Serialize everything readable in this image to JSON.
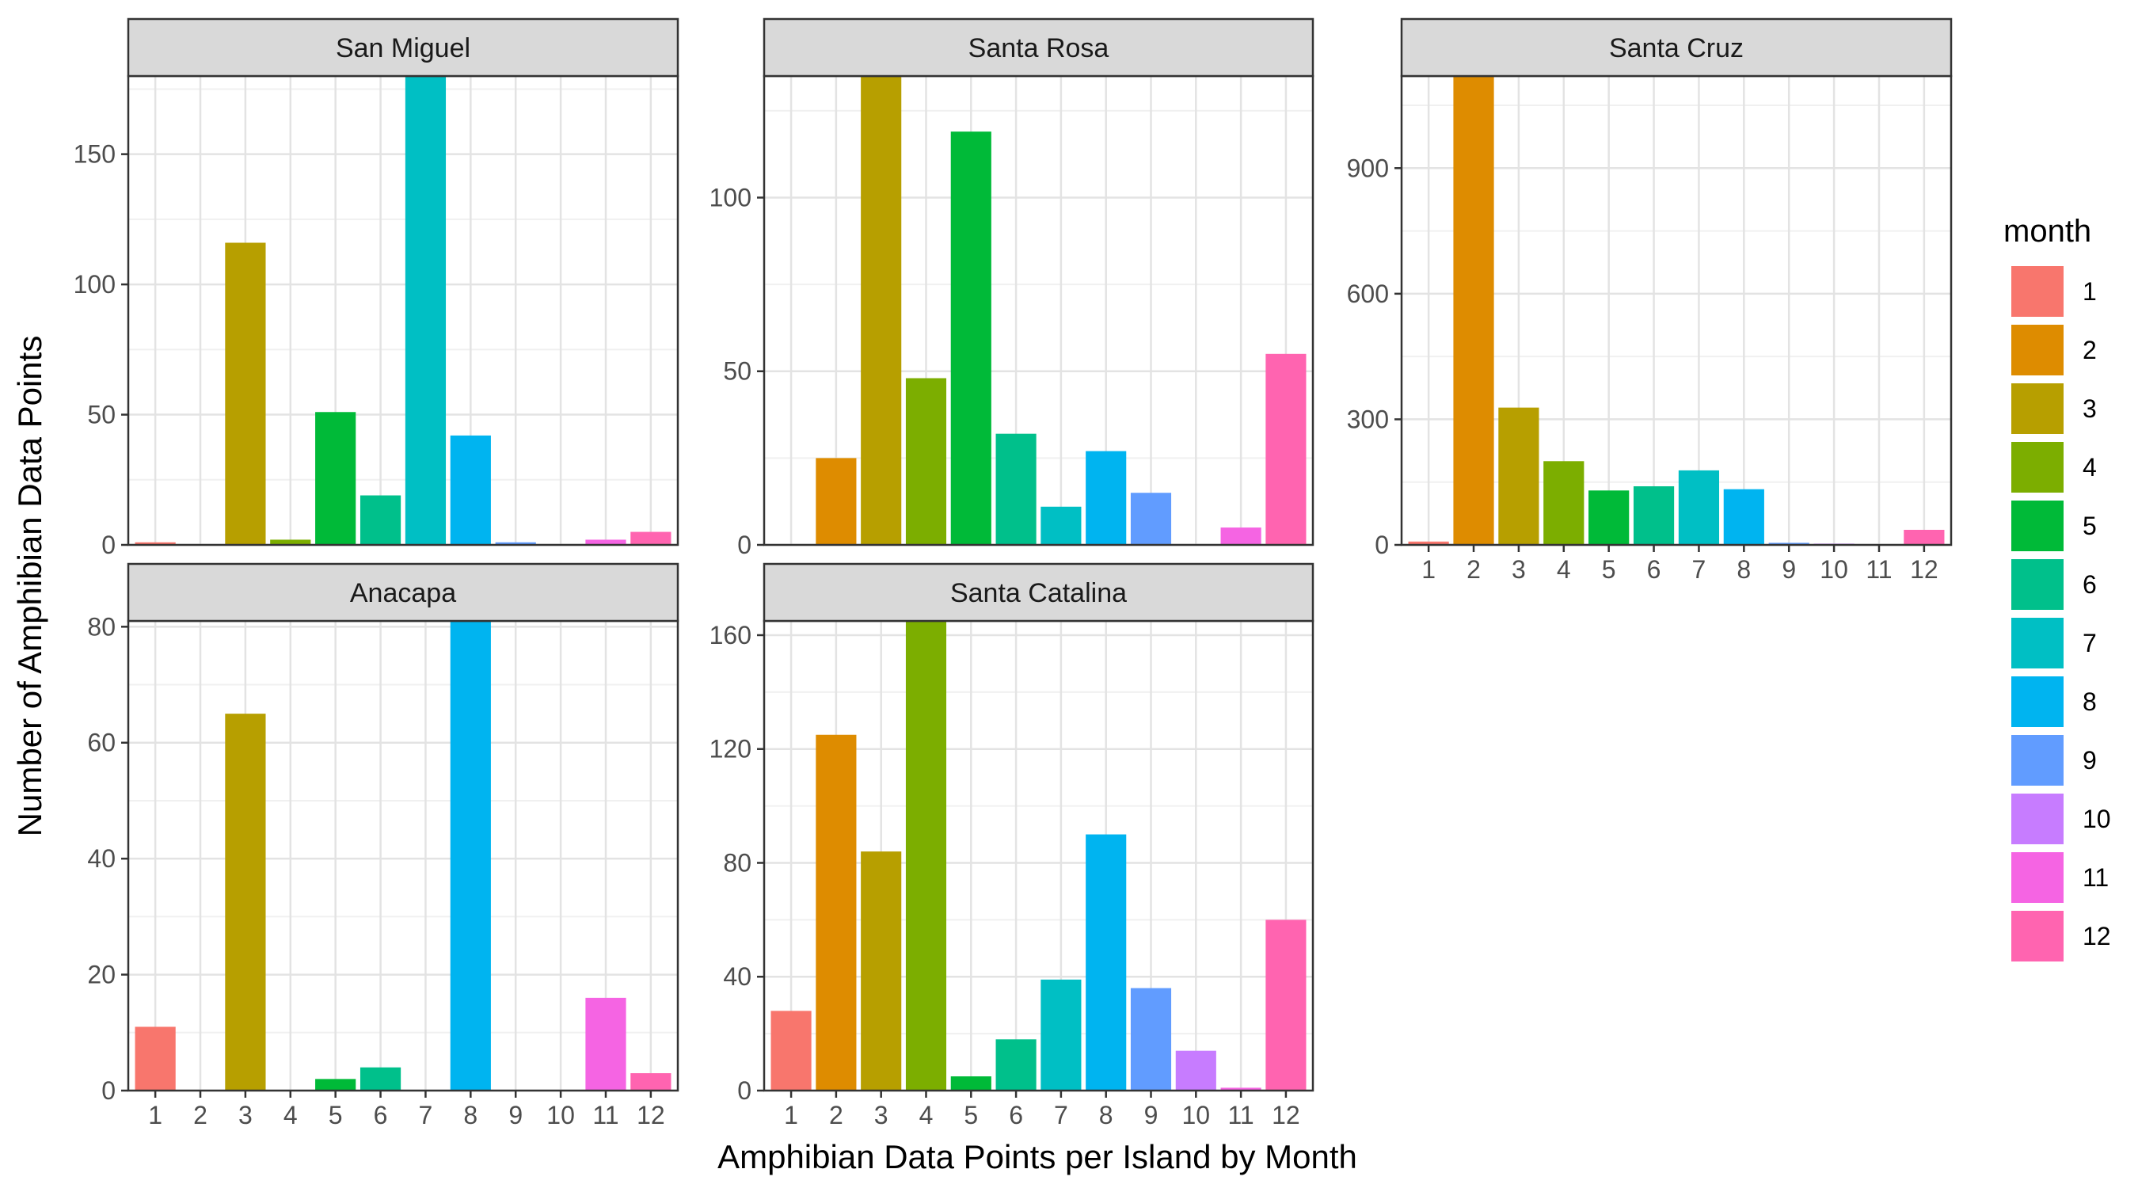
{
  "chart_data": {
    "type": "bar",
    "title": "",
    "xlabel": "Amphibian Data Points per Island by Month",
    "ylabel": "Number of Amphibian Data Points",
    "categories": [
      "1",
      "2",
      "3",
      "4",
      "5",
      "6",
      "7",
      "8",
      "9",
      "10",
      "11",
      "12"
    ],
    "grid": true,
    "legend": {
      "title": "month",
      "position": "right",
      "entries": [
        {
          "label": "1",
          "color": "#F8766D"
        },
        {
          "label": "2",
          "color": "#DE8C00"
        },
        {
          "label": "3",
          "color": "#B79F00"
        },
        {
          "label": "4",
          "color": "#7CAE00"
        },
        {
          "label": "5",
          "color": "#00BA38"
        },
        {
          "label": "6",
          "color": "#00C08B"
        },
        {
          "label": "7",
          "color": "#00BFC4"
        },
        {
          "label": "8",
          "color": "#00B4F0"
        },
        {
          "label": "9",
          "color": "#619CFF"
        },
        {
          "label": "10",
          "color": "#C77CFF"
        },
        {
          "label": "11",
          "color": "#F564E3"
        },
        {
          "label": "12",
          "color": "#FF64B0"
        }
      ]
    },
    "facets": [
      {
        "name": "San Miguel",
        "ylim": [
          0,
          180
        ],
        "yticks": [
          0,
          50,
          100,
          150
        ],
        "values": [
          1,
          0,
          116,
          2,
          51,
          19,
          180,
          42,
          1,
          0,
          2,
          5
        ],
        "show_x_ticks": false
      },
      {
        "name": "Santa Rosa",
        "ylim": [
          0,
          135
        ],
        "yticks": [
          0,
          50,
          100
        ],
        "values": [
          0,
          25,
          135,
          48,
          119,
          32,
          11,
          27,
          15,
          0,
          5,
          55
        ],
        "show_x_ticks": false
      },
      {
        "name": "Santa Cruz",
        "ylim": [
          0,
          1120
        ],
        "yticks": [
          0,
          300,
          600,
          900
        ],
        "values": [
          8,
          1120,
          328,
          200,
          130,
          140,
          178,
          133,
          5,
          3,
          0,
          36
        ],
        "show_x_ticks": true
      },
      {
        "name": "Anacapa",
        "ylim": [
          0,
          81
        ],
        "yticks": [
          0,
          20,
          40,
          60,
          80
        ],
        "values": [
          11,
          0,
          65,
          0,
          2,
          4,
          0,
          81,
          0,
          0,
          16,
          3
        ],
        "show_x_ticks": true
      },
      {
        "name": "Santa Catalina",
        "ylim": [
          0,
          165
        ],
        "yticks": [
          0,
          40,
          80,
          120,
          160
        ],
        "values": [
          28,
          125,
          84,
          165,
          5,
          18,
          39,
          90,
          36,
          14,
          1,
          60
        ],
        "show_x_ticks": true
      }
    ]
  }
}
